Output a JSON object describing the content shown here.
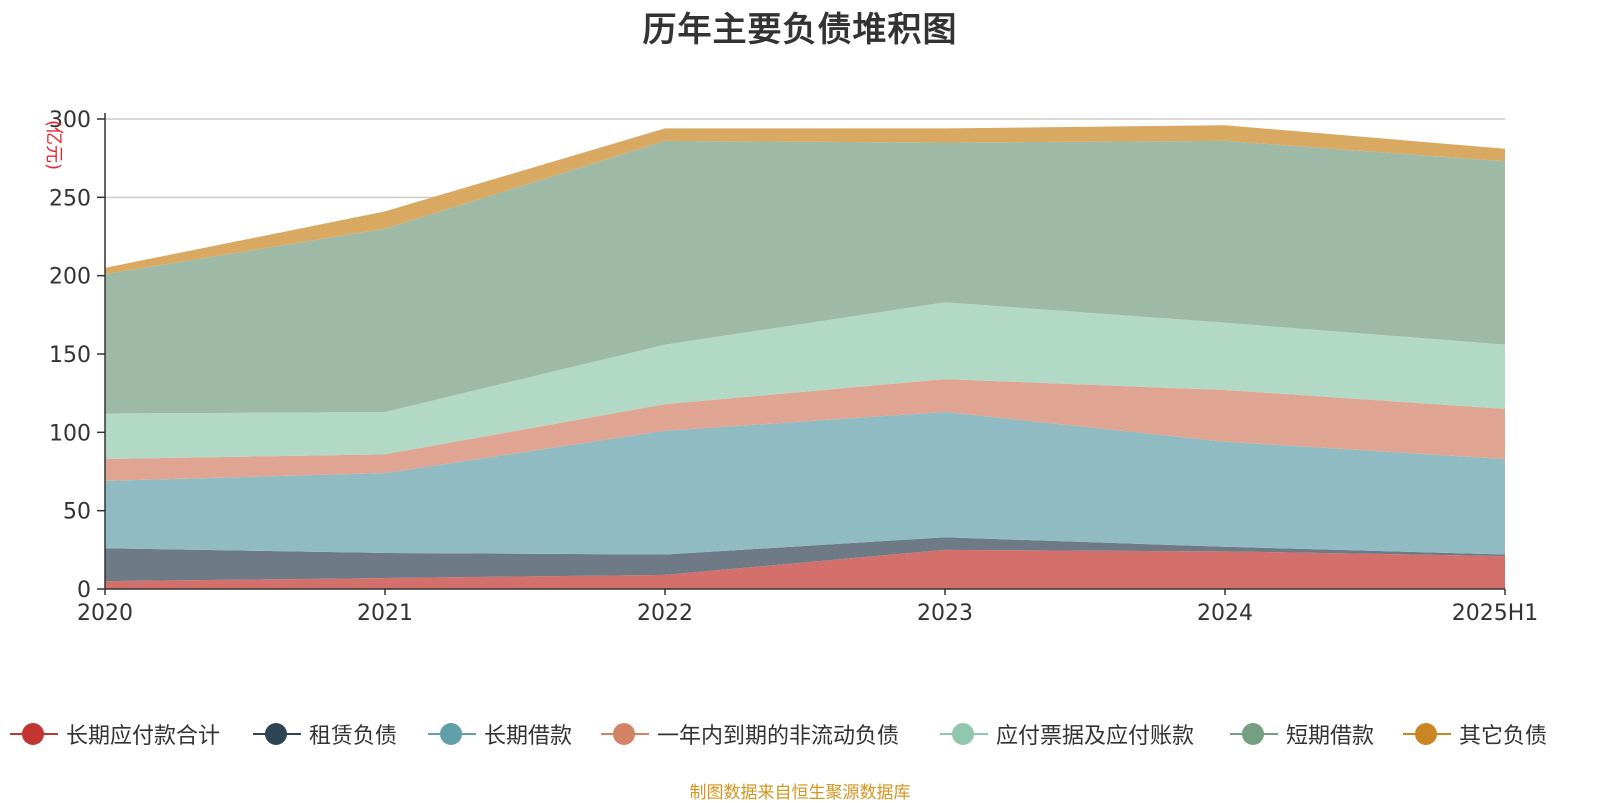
{
  "chart_data": {
    "type": "area",
    "stacked": true,
    "title": "历年主要负债堆积图",
    "unit_label": "(亿元)",
    "x": [
      "2020",
      "2021",
      "2022",
      "2023",
      "2024",
      "2025H1"
    ],
    "ylim": [
      0,
      300
    ],
    "yticks": [
      0,
      50,
      100,
      150,
      200,
      250,
      300
    ],
    "grid": true,
    "legend_position": "bottom",
    "series": [
      {
        "name": "长期应付款合计",
        "color": "#c23531",
        "fill": "#d4706c",
        "values": [
          5,
          7,
          9,
          25,
          24,
          21
        ]
      },
      {
        "name": "租赁负债",
        "color": "#2f4554",
        "fill": "#6e7b86",
        "values": [
          21,
          16,
          13,
          8,
          3,
          1
        ]
      },
      {
        "name": "长期借款",
        "color": "#61a0a8",
        "fill": "#90bbc2",
        "values": [
          43,
          51,
          79,
          80,
          67,
          61
        ]
      },
      {
        "name": "一年内到期的非流动负债",
        "color": "#d48265",
        "fill": "#e0a592",
        "values": [
          14,
          12,
          17,
          21,
          33,
          32
        ]
      },
      {
        "name": "应付票据及应付账款",
        "color": "#91c7ae",
        "fill": "#b2d8c6",
        "values": [
          29,
          27,
          38,
          49,
          43,
          41
        ]
      },
      {
        "name": "短期借款",
        "color": "#749f83",
        "fill": "#9eb9a5",
        "values": [
          89,
          117,
          130,
          102,
          116,
          117
        ]
      },
      {
        "name": "其它负债",
        "color": "#ca8622",
        "fill": "#d9a962",
        "values": [
          4,
          11,
          8,
          9,
          10,
          8
        ]
      }
    ]
  },
  "footer": {
    "source": "制图数据来自恒生聚源数据库"
  }
}
